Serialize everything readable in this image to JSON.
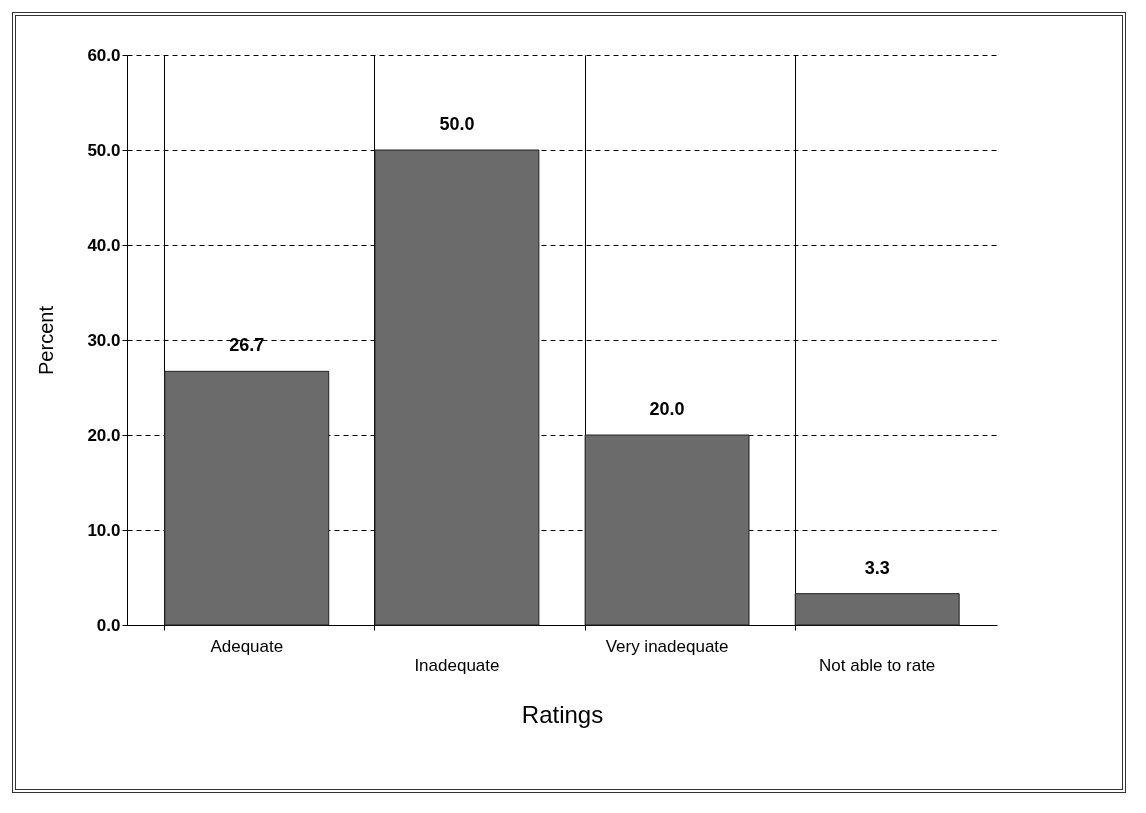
{
  "chart_data": {
    "type": "bar",
    "xlabel": "Ratings",
    "ylabel": "Percent",
    "categories": [
      "Adequate",
      "Inadequate",
      "Very inadequate",
      "Not able to rate"
    ],
    "values": [
      26.7,
      50.0,
      20.0,
      3.3
    ],
    "color": "#6b6b6b",
    "value_labels": [
      "26.7",
      "50.0",
      "20.0",
      "3.3"
    ],
    "ylim": [
      0,
      60
    ],
    "yticks": [
      {
        "value": 0,
        "label": "0.0"
      },
      {
        "value": 10,
        "label": "10.0"
      },
      {
        "value": 20,
        "label": "20.0"
      },
      {
        "value": 30,
        "label": "30.0"
      },
      {
        "value": 40,
        "label": "40.0"
      },
      {
        "value": 50,
        "label": "50.0"
      },
      {
        "value": 60,
        "label": "60.0"
      }
    ],
    "grid": true,
    "line_style": "dashed"
  }
}
